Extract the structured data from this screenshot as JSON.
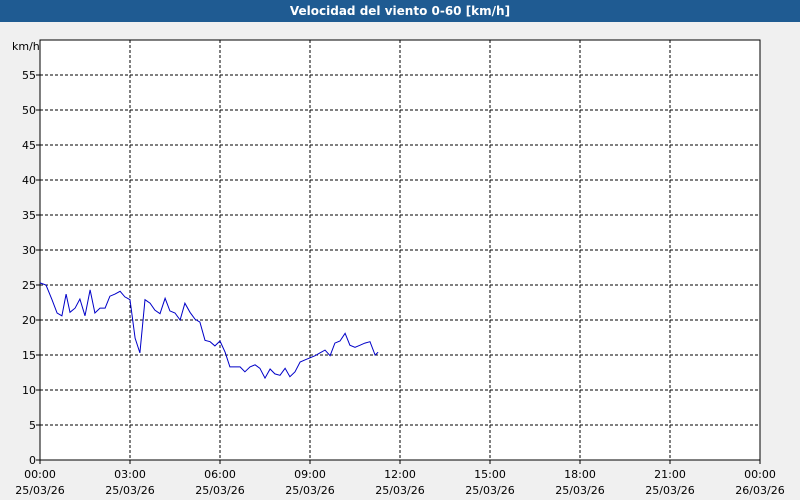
{
  "chart_data": {
    "type": "line",
    "title": "Velocidad del viento 0-60 [km/h]",
    "y_unit": "km/h",
    "xlim": [
      0,
      24
    ],
    "ylim": [
      0,
      60
    ],
    "yticks": [
      0,
      5,
      10,
      15,
      20,
      25,
      30,
      35,
      40,
      45,
      50,
      55
    ],
    "xticks": [
      {
        "value": 0,
        "label": "00:00",
        "date": "25/03/26"
      },
      {
        "value": 3,
        "label": "03:00",
        "date": "25/03/26"
      },
      {
        "value": 6,
        "label": "06:00",
        "date": "25/03/26"
      },
      {
        "value": 9,
        "label": "09:00",
        "date": "25/03/26"
      },
      {
        "value": 12,
        "label": "12:00",
        "date": "25/03/26"
      },
      {
        "value": 15,
        "label": "15:00",
        "date": "25/03/26"
      },
      {
        "value": 18,
        "label": "18:00",
        "date": "25/03/26"
      },
      {
        "value": 21,
        "label": "21:00",
        "date": "25/03/26"
      },
      {
        "value": 24,
        "label": "00:00",
        "date": "26/03/26"
      }
    ],
    "grid": true,
    "series": [
      {
        "color": "#0000c8",
        "x": [
          0,
          0.2,
          0.4,
          0.57,
          0.73,
          0.87,
          1.0,
          1.17,
          1.33,
          1.5,
          1.67,
          1.83,
          2.0,
          2.17,
          2.33,
          2.5,
          2.67,
          2.83,
          3.0,
          3.17,
          3.33,
          3.5,
          3.67,
          3.83,
          4.0,
          4.17,
          4.33,
          4.5,
          4.67,
          4.83,
          5.0,
          5.17,
          5.33,
          5.5,
          5.67,
          5.83,
          6.0,
          6.17,
          6.33,
          6.5,
          6.67,
          6.83,
          7.0,
          7.17,
          7.33,
          7.5,
          7.67,
          7.83,
          8.0,
          8.17,
          8.33,
          8.5,
          8.67,
          8.83,
          9.0,
          9.17,
          9.33,
          9.5,
          9.67,
          9.83,
          10.0,
          10.17,
          10.33,
          10.5,
          10.67,
          10.83,
          11.0,
          11.17,
          11.27
        ],
        "values": [
          25.3,
          25.0,
          22.9,
          21.0,
          20.6,
          23.7,
          21.1,
          21.7,
          23.0,
          20.6,
          24.3,
          21.0,
          21.7,
          21.7,
          23.4,
          23.7,
          24.1,
          23.3,
          22.9,
          17.4,
          15.3,
          22.9,
          22.4,
          21.4,
          20.9,
          23.1,
          21.3,
          21.0,
          20.0,
          22.4,
          21.1,
          20.1,
          19.7,
          17.1,
          16.9,
          16.3,
          17.0,
          15.4,
          13.3,
          13.3,
          13.3,
          12.6,
          13.3,
          13.6,
          13.1,
          11.7,
          13.0,
          12.3,
          12.1,
          13.1,
          11.9,
          12.6,
          14.0,
          14.3,
          14.6,
          14.9,
          15.3,
          15.7,
          14.9,
          16.7,
          17.0,
          18.1,
          16.4,
          16.1,
          16.4,
          16.7,
          16.9,
          15.0,
          15.4
        ]
      }
    ]
  }
}
